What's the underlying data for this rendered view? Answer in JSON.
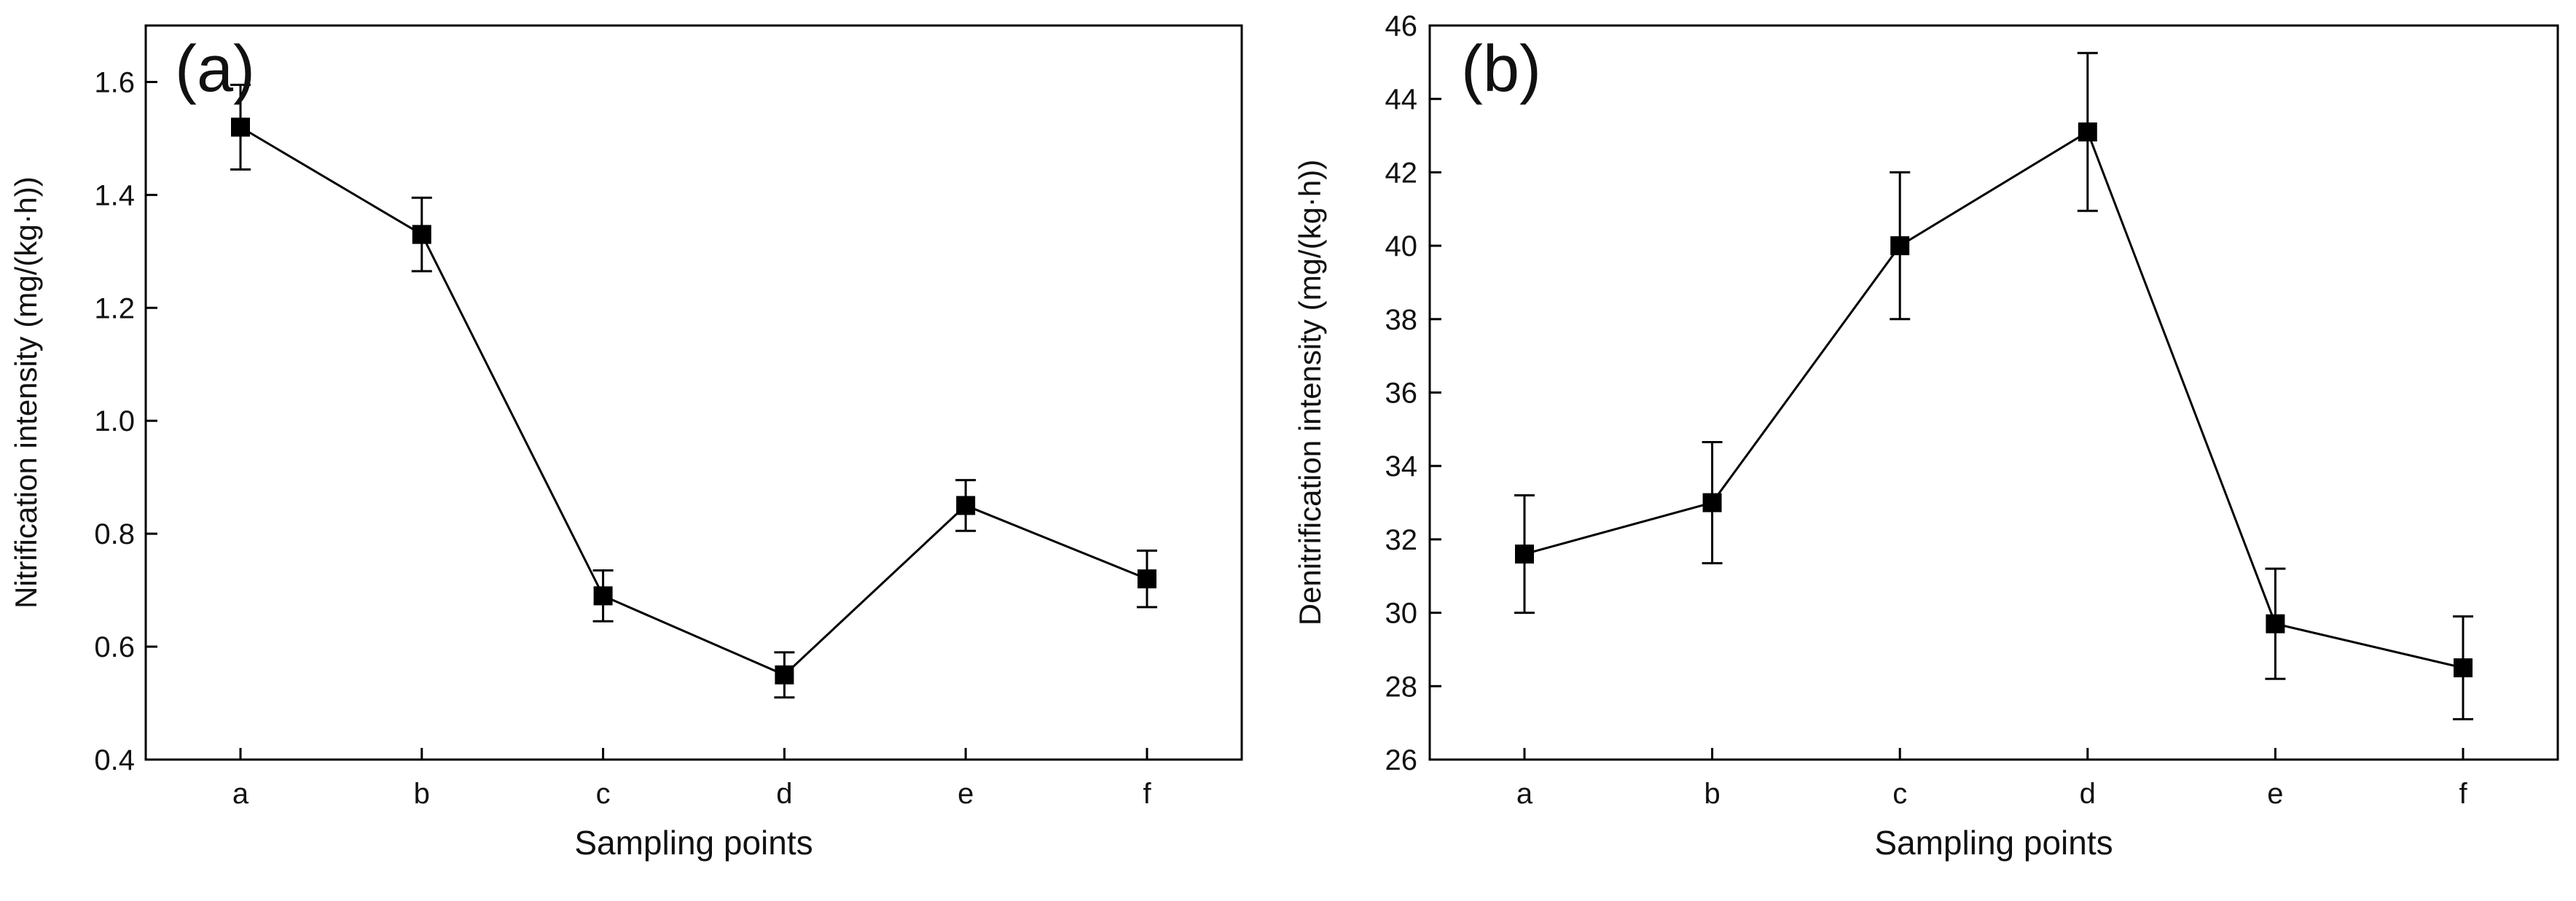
{
  "chart_data": [
    {
      "type": "line",
      "panel_label": "(a)",
      "title": "",
      "xlabel": "Sampling points",
      "ylabel": "Nitrification intensity (mg/(kg·h))",
      "categories": [
        "a",
        "b",
        "c",
        "d",
        "e",
        "f"
      ],
      "series": [
        {
          "name": "Nitrification intensity",
          "values": [
            1.52,
            1.33,
            0.69,
            0.55,
            0.85,
            0.72
          ],
          "errors": [
            0.075,
            0.065,
            0.045,
            0.04,
            0.045,
            0.05
          ]
        }
      ],
      "ylim": [
        0.4,
        1.7
      ],
      "yticks": [
        0.4,
        0.6,
        0.8,
        1.0,
        1.2,
        1.4,
        1.6
      ],
      "ytick_labels": [
        "0.4",
        "0.6",
        "0.8",
        "1.0",
        "1.2",
        "1.4",
        "1.6"
      ],
      "grid": false,
      "legend": "none",
      "color": "#000000"
    },
    {
      "type": "line",
      "panel_label": "(b)",
      "title": "",
      "xlabel": "Sampling points",
      "ylabel": "Denitrification intensity (mg/(kg·h))",
      "categories": [
        "a",
        "b",
        "c",
        "d",
        "e",
        "f"
      ],
      "series": [
        {
          "name": "Denitrification intensity",
          "values": [
            31.6,
            33.0,
            40.0,
            43.1,
            29.7,
            28.5
          ],
          "errors": [
            1.6,
            1.65,
            2.0,
            2.15,
            1.5,
            1.4
          ]
        }
      ],
      "ylim": [
        26,
        46
      ],
      "yticks": [
        26,
        28,
        30,
        32,
        34,
        36,
        38,
        40,
        42,
        44,
        46
      ],
      "ytick_labels": [
        "26",
        "28",
        "30",
        "32",
        "34",
        "36",
        "38",
        "40",
        "42",
        "44",
        "46"
      ],
      "grid": false,
      "legend": "none",
      "color": "#000000"
    }
  ]
}
